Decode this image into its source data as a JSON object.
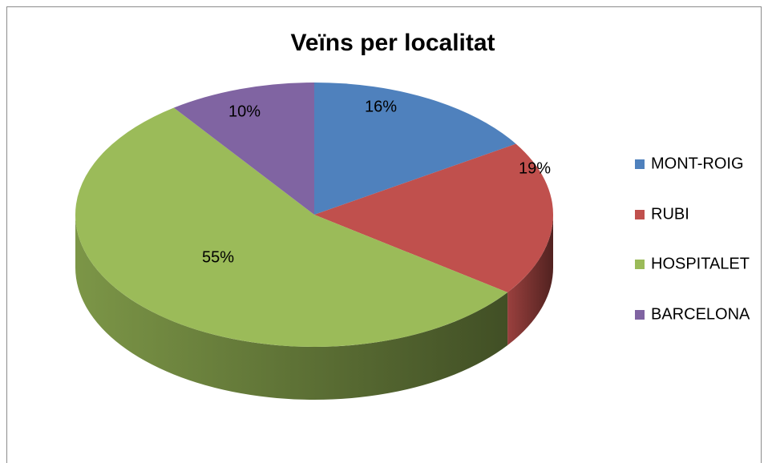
{
  "chart_data": {
    "type": "pie",
    "title": "Veïns per localitat",
    "categories": [
      "MONT-ROIG",
      "RUBI",
      "HOSPITALET",
      "BARCELONA"
    ],
    "values": [
      16,
      19,
      55,
      10
    ],
    "value_labels": [
      "16%",
      "19%",
      "55%",
      "10%"
    ],
    "colors": [
      "#4f81bd",
      "#c0504d",
      "#9bbb59",
      "#8064a2"
    ],
    "legend": "right"
  }
}
